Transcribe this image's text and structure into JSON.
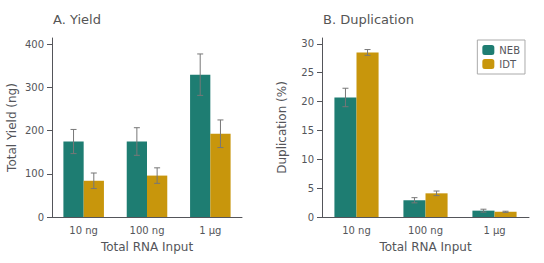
{
  "chart_data": [
    {
      "type": "bar",
      "title": "A. Yield",
      "xlabel": "Total RNA Input",
      "ylabel": "Total Yield (ng)",
      "categories": [
        "10 ng",
        "100 ng",
        "1 μg"
      ],
      "series": [
        {
          "name": "NEB",
          "color": "#1e7d72",
          "values": [
            175,
            175,
            330
          ],
          "errors": [
            28,
            32,
            48
          ]
        },
        {
          "name": "IDT",
          "color": "#c8960c",
          "values": [
            84,
            96,
            193
          ],
          "errors": [
            18,
            18,
            32
          ]
        }
      ],
      "ylim": [
        0,
        415
      ],
      "yticks": [
        0,
        100,
        200,
        300,
        400
      ],
      "grid": false
    },
    {
      "type": "bar",
      "title": "B. Duplication",
      "xlabel": "Total RNA Input",
      "ylabel": "Duplication (%)",
      "categories": [
        "10 ng",
        "100 ng",
        "1 μg"
      ],
      "series": [
        {
          "name": "NEB",
          "color": "#1e7d72",
          "values": [
            20.7,
            2.9,
            1.1
          ],
          "errors": [
            1.6,
            0.45,
            0.25
          ]
        },
        {
          "name": "IDT",
          "color": "#c8960c",
          "values": [
            28.5,
            4.1,
            0.9
          ],
          "errors": [
            0.5,
            0.4,
            0.1
          ]
        }
      ],
      "ylim": [
        0,
        31
      ],
      "yticks": [
        0,
        5,
        10,
        15,
        20,
        25,
        30
      ],
      "grid": false,
      "legend": "upper right"
    }
  ]
}
